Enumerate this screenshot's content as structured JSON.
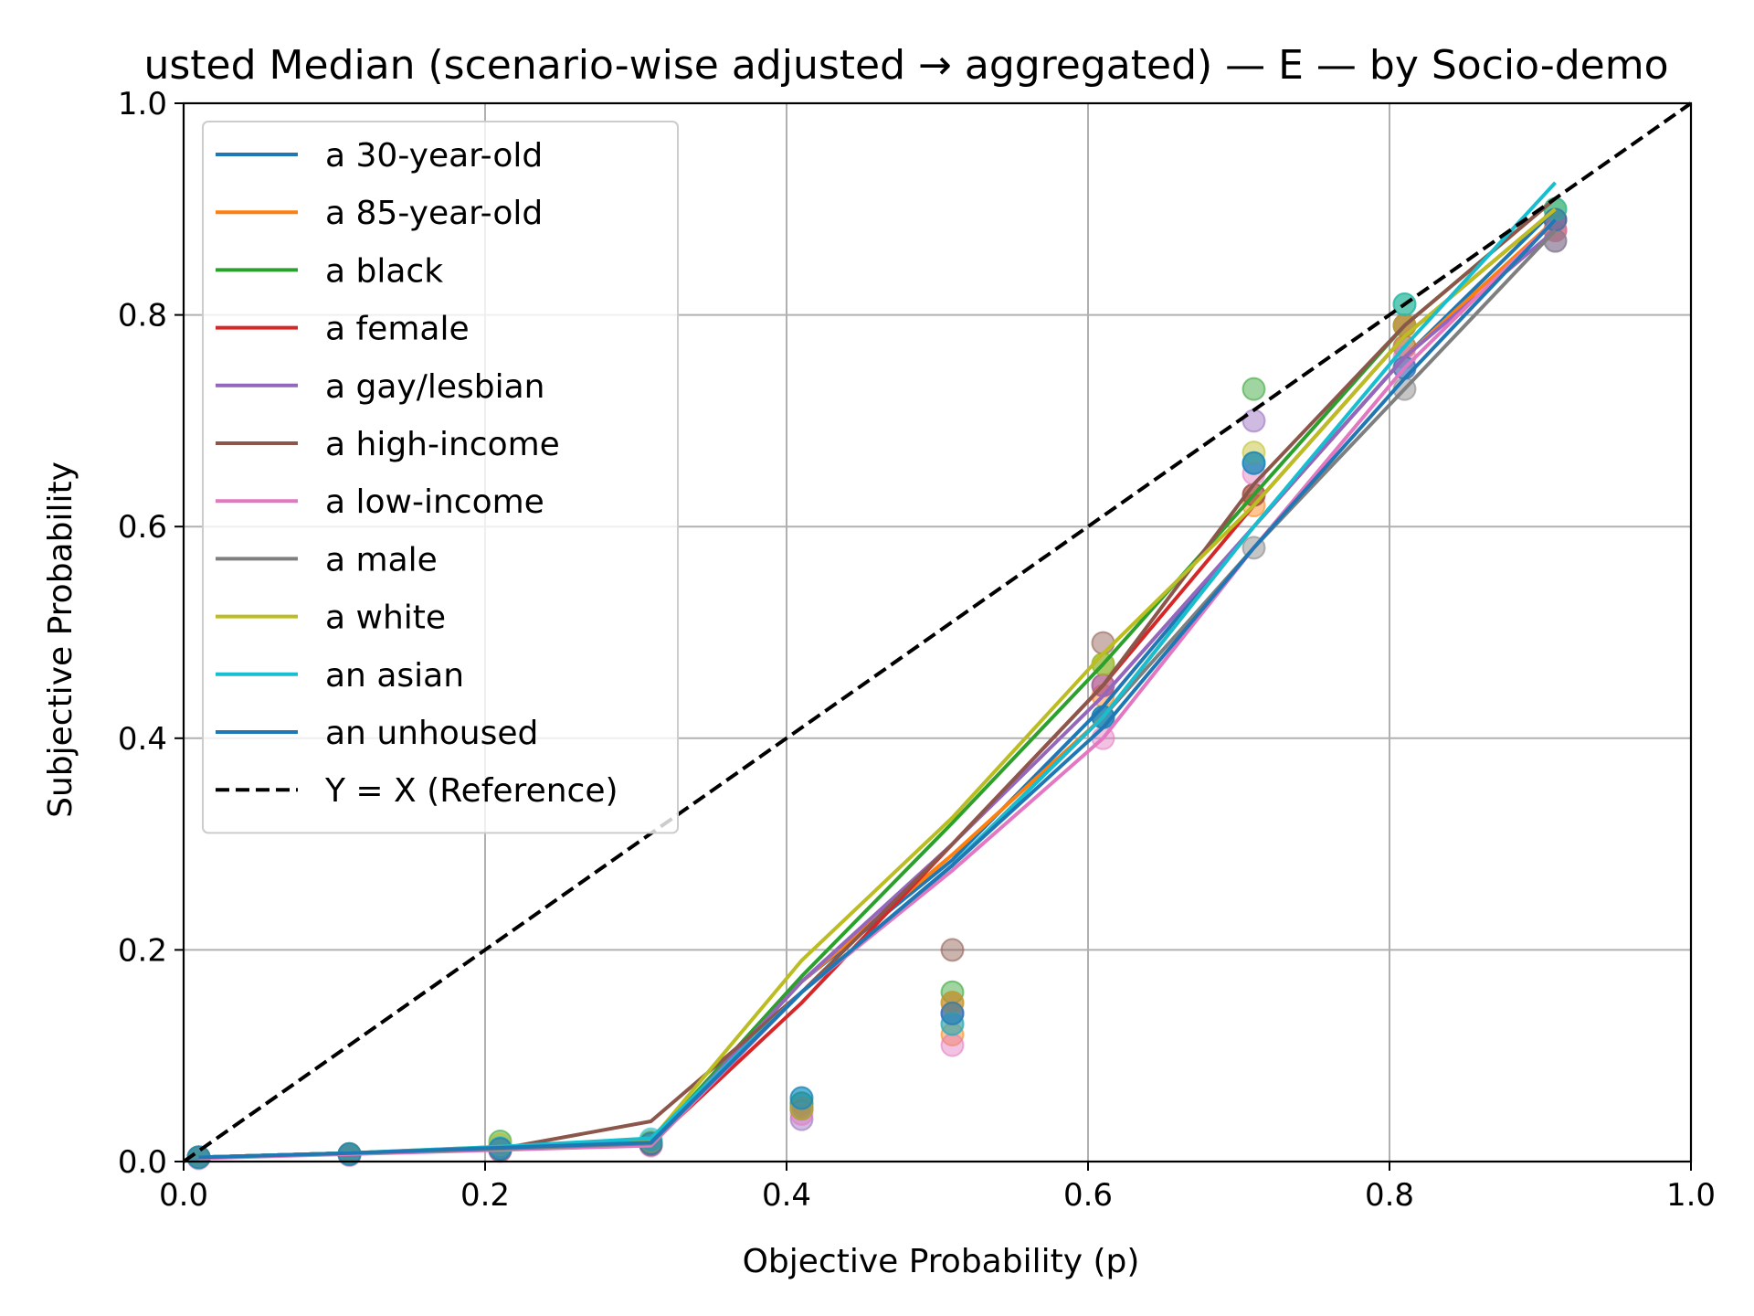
{
  "chart_data": {
    "type": "line",
    "title": "usted Median (scenario-wise adjusted → aggregated) — E — by Socio-demo",
    "xlabel": "Objective Probability (p)",
    "ylabel": "Subjective Probability",
    "xlim": [
      0.0,
      1.0
    ],
    "ylim": [
      0.0,
      1.0
    ],
    "xticks": [
      "0.0",
      "0.2",
      "0.4",
      "0.6",
      "0.8",
      "1.0"
    ],
    "yticks": [
      "0.0",
      "0.2",
      "0.4",
      "0.6",
      "0.8",
      "1.0"
    ],
    "grid": true,
    "legend_position": "upper-left",
    "x": [
      0.01,
      0.11,
      0.21,
      0.31,
      0.41,
      0.51,
      0.61,
      0.71,
      0.81,
      0.91
    ],
    "series": [
      {
        "name": "a 30-year-old",
        "color": "#1f77b4",
        "line": [
          0.004,
          0.008,
          0.013,
          0.018,
          0.17,
          0.285,
          0.43,
          0.6,
          0.76,
          0.9
        ],
        "points": [
          0.004,
          0.007,
          0.012,
          0.017,
          0.055,
          0.14,
          0.42,
          0.66,
          0.77,
          0.89
        ]
      },
      {
        "name": "a 85-year-old",
        "color": "#ff7f0e",
        "line": [
          0.004,
          0.008,
          0.012,
          0.017,
          0.17,
          0.29,
          0.42,
          0.6,
          0.76,
          0.89
        ],
        "points": [
          0.004,
          0.007,
          0.011,
          0.016,
          0.05,
          0.12,
          0.44,
          0.62,
          0.77,
          0.88
        ]
      },
      {
        "name": "a black",
        "color": "#2ca02c",
        "line": [
          0.004,
          0.008,
          0.013,
          0.018,
          0.175,
          0.32,
          0.47,
          0.63,
          0.79,
          0.91
        ],
        "points": [
          0.004,
          0.007,
          0.019,
          0.018,
          0.055,
          0.16,
          0.47,
          0.73,
          0.81,
          0.9
        ]
      },
      {
        "name": "a female",
        "color": "#d62728",
        "line": [
          0.004,
          0.008,
          0.012,
          0.017,
          0.15,
          0.3,
          0.45,
          0.62,
          0.78,
          0.9
        ],
        "points": [
          0.004,
          0.007,
          0.011,
          0.016,
          0.05,
          0.15,
          0.45,
          0.63,
          0.79,
          0.89
        ]
      },
      {
        "name": "a gay/lesbian",
        "color": "#9467bd",
        "line": [
          0.004,
          0.008,
          0.012,
          0.017,
          0.17,
          0.3,
          0.44,
          0.6,
          0.76,
          0.88
        ],
        "points": [
          0.004,
          0.007,
          0.011,
          0.016,
          0.04,
          0.14,
          0.45,
          0.7,
          0.75,
          0.87
        ]
      },
      {
        "name": "a high-income",
        "color": "#8c564b",
        "line": [
          0.004,
          0.008,
          0.012,
          0.038,
          0.16,
          0.3,
          0.45,
          0.64,
          0.79,
          0.91
        ],
        "points": [
          0.004,
          0.007,
          0.011,
          0.017,
          0.05,
          0.2,
          0.49,
          0.63,
          0.79,
          0.88
        ]
      },
      {
        "name": "a low-income",
        "color": "#e377c2",
        "line": [
          0.003,
          0.007,
          0.011,
          0.015,
          0.16,
          0.275,
          0.4,
          0.58,
          0.75,
          0.89
        ],
        "points": [
          0.003,
          0.006,
          0.01,
          0.015,
          0.045,
          0.11,
          0.4,
          0.65,
          0.76,
          0.88
        ]
      },
      {
        "name": "a male",
        "color": "#7f7f7f",
        "line": [
          0.004,
          0.008,
          0.012,
          0.017,
          0.16,
          0.28,
          0.42,
          0.58,
          0.73,
          0.88
        ],
        "points": [
          0.004,
          0.007,
          0.011,
          0.016,
          0.05,
          0.13,
          0.42,
          0.58,
          0.73,
          0.87
        ]
      },
      {
        "name": "a white",
        "color": "#bcbd22",
        "line": [
          0.004,
          0.008,
          0.014,
          0.02,
          0.19,
          0.325,
          0.48,
          0.62,
          0.78,
          0.9
        ],
        "points": [
          0.004,
          0.007,
          0.016,
          0.019,
          0.05,
          0.15,
          0.47,
          0.67,
          0.79,
          0.9
        ]
      },
      {
        "name": "an asian",
        "color": "#17becf",
        "line": [
          0.004,
          0.008,
          0.014,
          0.022,
          0.16,
          0.28,
          0.42,
          0.6,
          0.77,
          0.925
        ],
        "points": [
          0.004,
          0.007,
          0.013,
          0.021,
          0.06,
          0.13,
          0.42,
          0.66,
          0.81,
          0.9
        ]
      },
      {
        "name": "an unhoused",
        "color": "#1f77b4",
        "line": [
          0.004,
          0.008,
          0.013,
          0.018,
          0.16,
          0.28,
          0.41,
          0.58,
          0.74,
          0.89
        ],
        "points": [
          0.004,
          0.007,
          0.012,
          0.017,
          0.06,
          0.14,
          0.42,
          0.66,
          0.75,
          0.89
        ]
      }
    ],
    "reference": {
      "name": "Y = X (Reference)",
      "color": "#000000",
      "x": [
        0.0,
        1.0
      ],
      "y": [
        0.0,
        1.0
      ]
    }
  }
}
